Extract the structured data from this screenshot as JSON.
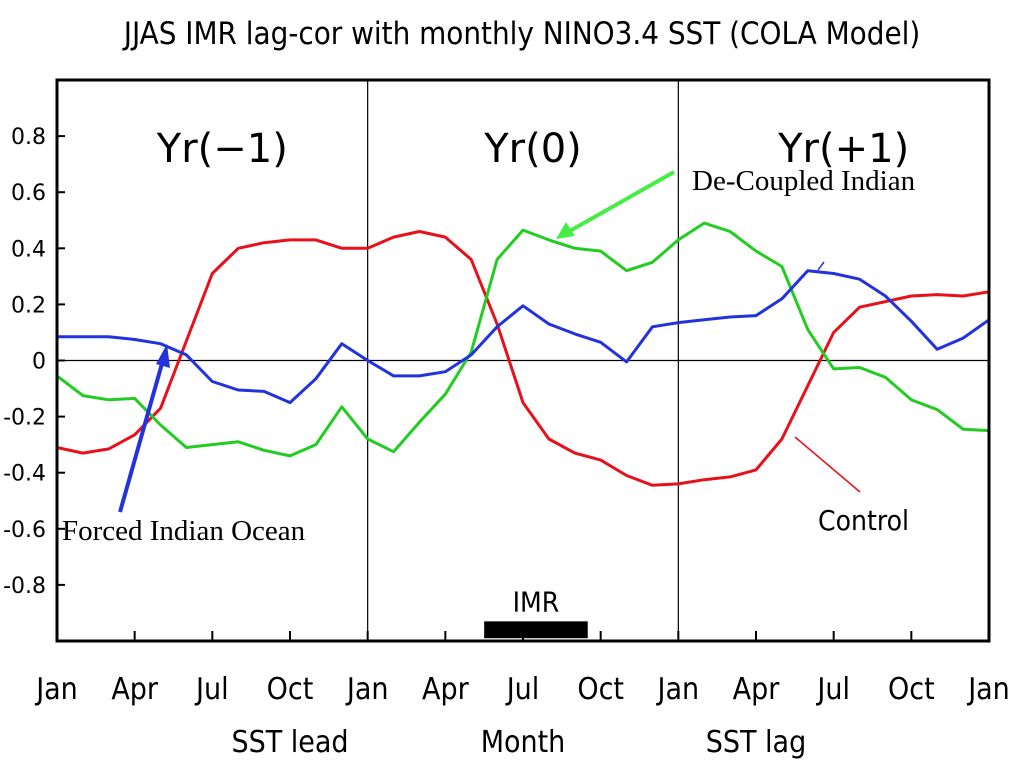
{
  "chart_data": {
    "type": "line",
    "title": "JJAS IMR lag-cor with monthly NINO3.4 SST (COLA Model)",
    "ylim": [
      -1.0,
      1.0
    ],
    "yticks": [
      {
        "value": 0.8,
        "label": "0.8"
      },
      {
        "value": 0.6,
        "label": "0.6"
      },
      {
        "value": 0.4,
        "label": "0.4"
      },
      {
        "value": 0.2,
        "label": "0.2"
      },
      {
        "value": 0,
        "label": "0"
      },
      {
        "value": -0.2,
        "label": "-0.2"
      },
      {
        "value": -0.4,
        "label": "-0.4"
      },
      {
        "value": -0.6,
        "label": "-0.6"
      },
      {
        "value": -0.8,
        "label": "-0.8"
      }
    ],
    "xlim": [
      0,
      36
    ],
    "xticks": [
      {
        "value": 0,
        "label": "Jan"
      },
      {
        "value": 3,
        "label": "Apr"
      },
      {
        "value": 6,
        "label": "Jul"
      },
      {
        "value": 9,
        "label": "Oct"
      },
      {
        "value": 12,
        "label": "Jan"
      },
      {
        "value": 15,
        "label": "Apr"
      },
      {
        "value": 18,
        "label": "Jul"
      },
      {
        "value": 21,
        "label": "Oct"
      },
      {
        "value": 24,
        "label": "Jan"
      },
      {
        "value": 27,
        "label": "Apr"
      },
      {
        "value": 30,
        "label": "Jul"
      },
      {
        "value": 33,
        "label": "Oct"
      },
      {
        "value": 36,
        "label": "Jan"
      }
    ],
    "xlabels": [
      {
        "text": "SST lead",
        "x": 9
      },
      {
        "text": "Month",
        "x": 18
      },
      {
        "text": "SST lag",
        "x": 27
      }
    ],
    "periods": [
      {
        "label": "Yr(−1)",
        "x": 6
      },
      {
        "label": "Yr(0)",
        "x": 18
      },
      {
        "label": "Yr(+1)",
        "x": 30
      }
    ],
    "dividers": [
      12,
      24
    ],
    "imr_bar": {
      "label": "IMR",
      "x_start": 16.5,
      "x_end": 20.5,
      "y_top": -0.93,
      "y_bottom": -0.99
    },
    "series": [
      {
        "name": "Control",
        "color": "#e8101a",
        "x": [
          0,
          1,
          2,
          3,
          4,
          5,
          6,
          7,
          8,
          9,
          10,
          11,
          12,
          13,
          14,
          15,
          16,
          17,
          18,
          19,
          20,
          21,
          22,
          23,
          24,
          25,
          26,
          27,
          28,
          29,
          30,
          31,
          32,
          33,
          34,
          35,
          36
        ],
        "values": [
          -0.31,
          -0.33,
          -0.315,
          -0.265,
          -0.17,
          0.07,
          0.31,
          0.4,
          0.42,
          0.43,
          0.43,
          0.4,
          0.4,
          0.44,
          0.46,
          0.44,
          0.36,
          0.13,
          -0.15,
          -0.28,
          -0.33,
          -0.355,
          -0.41,
          -0.445,
          -0.44,
          -0.425,
          -0.415,
          -0.39,
          -0.28,
          -0.09,
          0.1,
          0.19,
          0.21,
          0.23,
          0.235,
          0.23,
          0.245
        ]
      },
      {
        "name": "De-Coupled Indian",
        "color": "#22cc22",
        "x": [
          0,
          1,
          2,
          3,
          4,
          5,
          6,
          7,
          8,
          9,
          10,
          11,
          12,
          13,
          14,
          15,
          16,
          17,
          18,
          19,
          20,
          21,
          22,
          23,
          24,
          25,
          26,
          27,
          28,
          29,
          30,
          31,
          32,
          33,
          34,
          35,
          36
        ],
        "values": [
          -0.055,
          -0.125,
          -0.14,
          -0.135,
          -0.23,
          -0.31,
          -0.3,
          -0.29,
          -0.32,
          -0.34,
          -0.3,
          -0.165,
          -0.28,
          -0.325,
          -0.22,
          -0.12,
          0.03,
          0.36,
          0.465,
          0.43,
          0.4,
          0.39,
          0.32,
          0.35,
          0.43,
          0.49,
          0.46,
          0.39,
          0.335,
          0.11,
          -0.03,
          -0.025,
          -0.06,
          -0.14,
          -0.175,
          -0.245,
          -0.25
        ]
      },
      {
        "name": "Forced Indian Ocean",
        "color": "#2233dd",
        "x": [
          0,
          1,
          2,
          3,
          4,
          5,
          6,
          7,
          8,
          9,
          10,
          11,
          12,
          13,
          14,
          15,
          16,
          17,
          18,
          19,
          20,
          21,
          22,
          23,
          24,
          25,
          26,
          27,
          28,
          29,
          30,
          31,
          32,
          33,
          34,
          35,
          36
        ],
        "values": [
          0.085,
          0.085,
          0.085,
          0.075,
          0.06,
          0.02,
          -0.075,
          -0.105,
          -0.11,
          -0.15,
          -0.065,
          0.06,
          0.0,
          -0.055,
          -0.055,
          -0.04,
          0.02,
          0.12,
          0.195,
          0.13,
          0.095,
          0.065,
          -0.005,
          0.12,
          0.135,
          0.145,
          0.155,
          0.16,
          0.22,
          0.32,
          0.31,
          0.29,
          0.23,
          0.14,
          0.04,
          0.08,
          0.145
        ]
      }
    ],
    "annotations": [
      {
        "text": "De-Coupled Indian",
        "color": "#33dd33"
      },
      {
        "text": "Control",
        "color": "#e8101a"
      },
      {
        "text": "Forced Indian Ocean",
        "color": "#2233dd"
      }
    ]
  }
}
